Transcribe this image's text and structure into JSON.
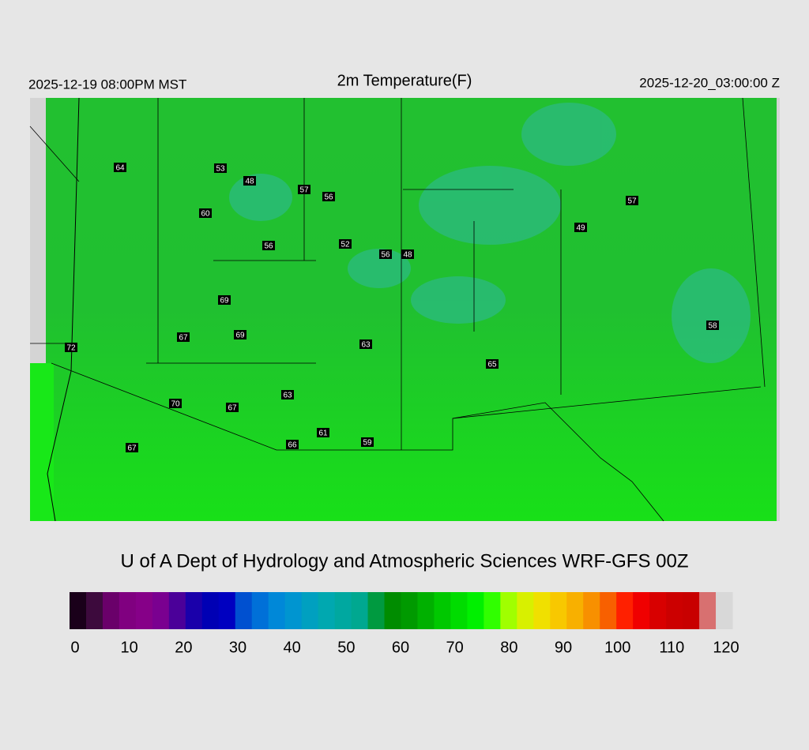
{
  "header": {
    "left": "2025-12-19 08:00PM MST",
    "title": "2m Temperature(F)",
    "right": "2025-12-20_03:00:00 Z"
  },
  "stations": [
    64,
    53,
    48,
    57,
    56,
    60,
    56,
    52,
    56,
    48,
    57,
    49,
    69,
    67,
    69,
    72,
    63,
    58,
    65,
    63,
    70,
    67,
    61,
    66,
    59,
    67
  ],
  "footer": "U of A Dept of Hydrology and Atmospheric Sciences WRF-GFS 00Z",
  "colorbar": {
    "lim": [
      0,
      120
    ],
    "ticks": [
      0,
      10,
      20,
      30,
      40,
      50,
      60,
      70,
      80,
      90,
      100,
      110,
      120
    ],
    "colors": [
      "#1a001a",
      "#3d0a3d",
      "#6a006a",
      "#800080",
      "#860088",
      "#7a0090",
      "#4b0099",
      "#1a00aa",
      "#0000b4",
      "#0000c0",
      "#0050d0",
      "#0070d8",
      "#0088d8",
      "#0095d0",
      "#00a0c0",
      "#00a8b0",
      "#00a8a0",
      "#00a890",
      "#009a40",
      "#008c00",
      "#009a00",
      "#00b000",
      "#00c800",
      "#00dc00",
      "#00f000",
      "#30ff00",
      "#a0ff00",
      "#d8f000",
      "#f0e000",
      "#f8c800",
      "#f8b000",
      "#f89000",
      "#f86000",
      "#ff2000",
      "#f00000",
      "#d80000",
      "#cc0000",
      "#c80000",
      "#d87070",
      "#d8d8d8"
    ]
  }
}
